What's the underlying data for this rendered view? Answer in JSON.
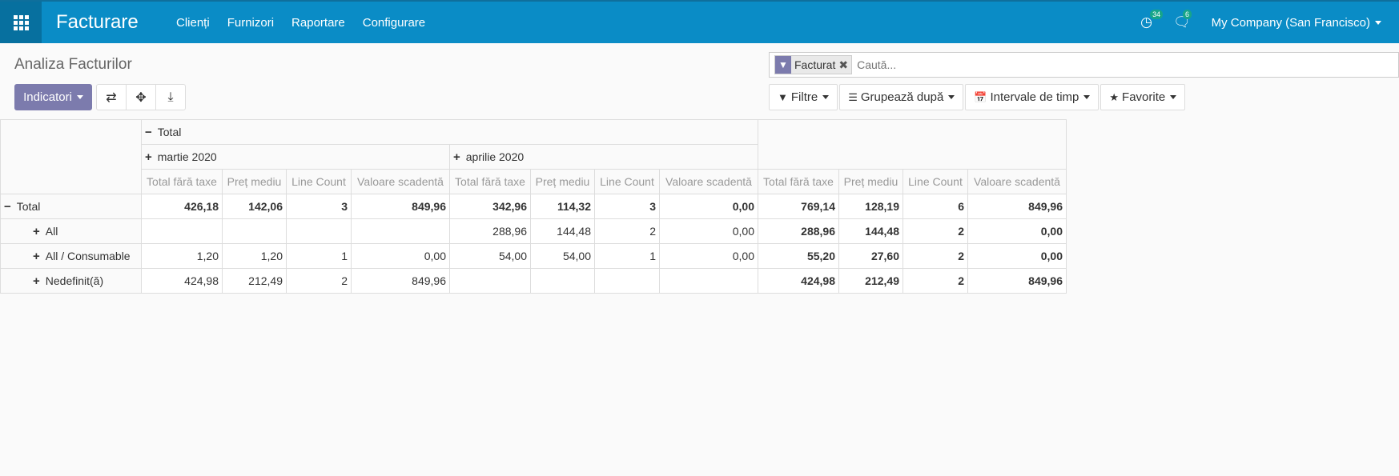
{
  "navbar": {
    "brand": "Facturare",
    "menu": [
      "Clienți",
      "Furnizori",
      "Raportare",
      "Configurare"
    ],
    "activity_badge": "34",
    "messages_badge": "6",
    "company": "My Company (San Francisco)"
  },
  "control_panel": {
    "breadcrumb": "Analiza Facturilor",
    "measures_label": "Indicatori",
    "search": {
      "facet_label": "Facturat",
      "placeholder": "Caută..."
    },
    "filters": {
      "filters_label": "Filtre",
      "groupby_label": "Grupează după",
      "timeranges_label": "Intervale de timp",
      "favorites_label": "Favorite"
    }
  },
  "pivot": {
    "col_total_label": "Total",
    "col_groups": [
      "martie 2020",
      "aprilie 2020"
    ],
    "measures": [
      "Total fără taxe",
      "Preț mediu",
      "Line Count",
      "Valoare scadentă"
    ],
    "rows": [
      {
        "label": "Total",
        "sign": "−",
        "cells": [
          "426,18",
          "142,06",
          "3",
          "849,96",
          "342,96",
          "114,32",
          "3",
          "0,00",
          "769,14",
          "128,19",
          "6",
          "849,96"
        ]
      },
      {
        "label": "All",
        "sign": "+",
        "cells": [
          "",
          "",
          "",
          "",
          "288,96",
          "144,48",
          "2",
          "0,00",
          "288,96",
          "144,48",
          "2",
          "0,00"
        ]
      },
      {
        "label": "All / Consumable",
        "sign": "+",
        "cells": [
          "1,20",
          "1,20",
          "1",
          "0,00",
          "54,00",
          "54,00",
          "1",
          "0,00",
          "55,20",
          "27,60",
          "2",
          "0,00"
        ]
      },
      {
        "label": "Nedefinit(ă)",
        "sign": "+",
        "cells": [
          "424,98",
          "212,49",
          "2",
          "849,96",
          "",
          "",
          "",
          "",
          "424,98",
          "212,49",
          "2",
          "849,96"
        ]
      }
    ]
  }
}
